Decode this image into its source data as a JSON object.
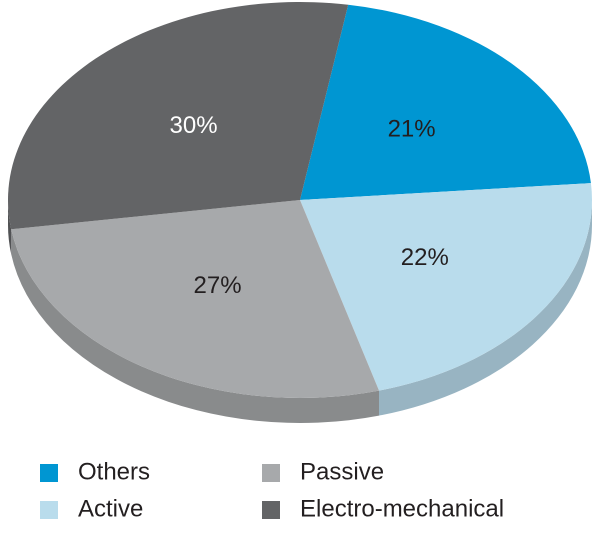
{
  "chart_data": {
    "type": "pie",
    "categories": [
      "Others",
      "Active",
      "Passive",
      "Electro-mechanical"
    ],
    "values": [
      21,
      22,
      27,
      30
    ],
    "value_labels": [
      "21%",
      "22%",
      "27%",
      "30%"
    ],
    "colors": [
      "#0096d2",
      "#b9dcec",
      "#a7a9ab",
      "#636466"
    ],
    "label_colors": [
      "#231f20",
      "#231f20",
      "#231f20",
      "#ffffff"
    ]
  }
}
